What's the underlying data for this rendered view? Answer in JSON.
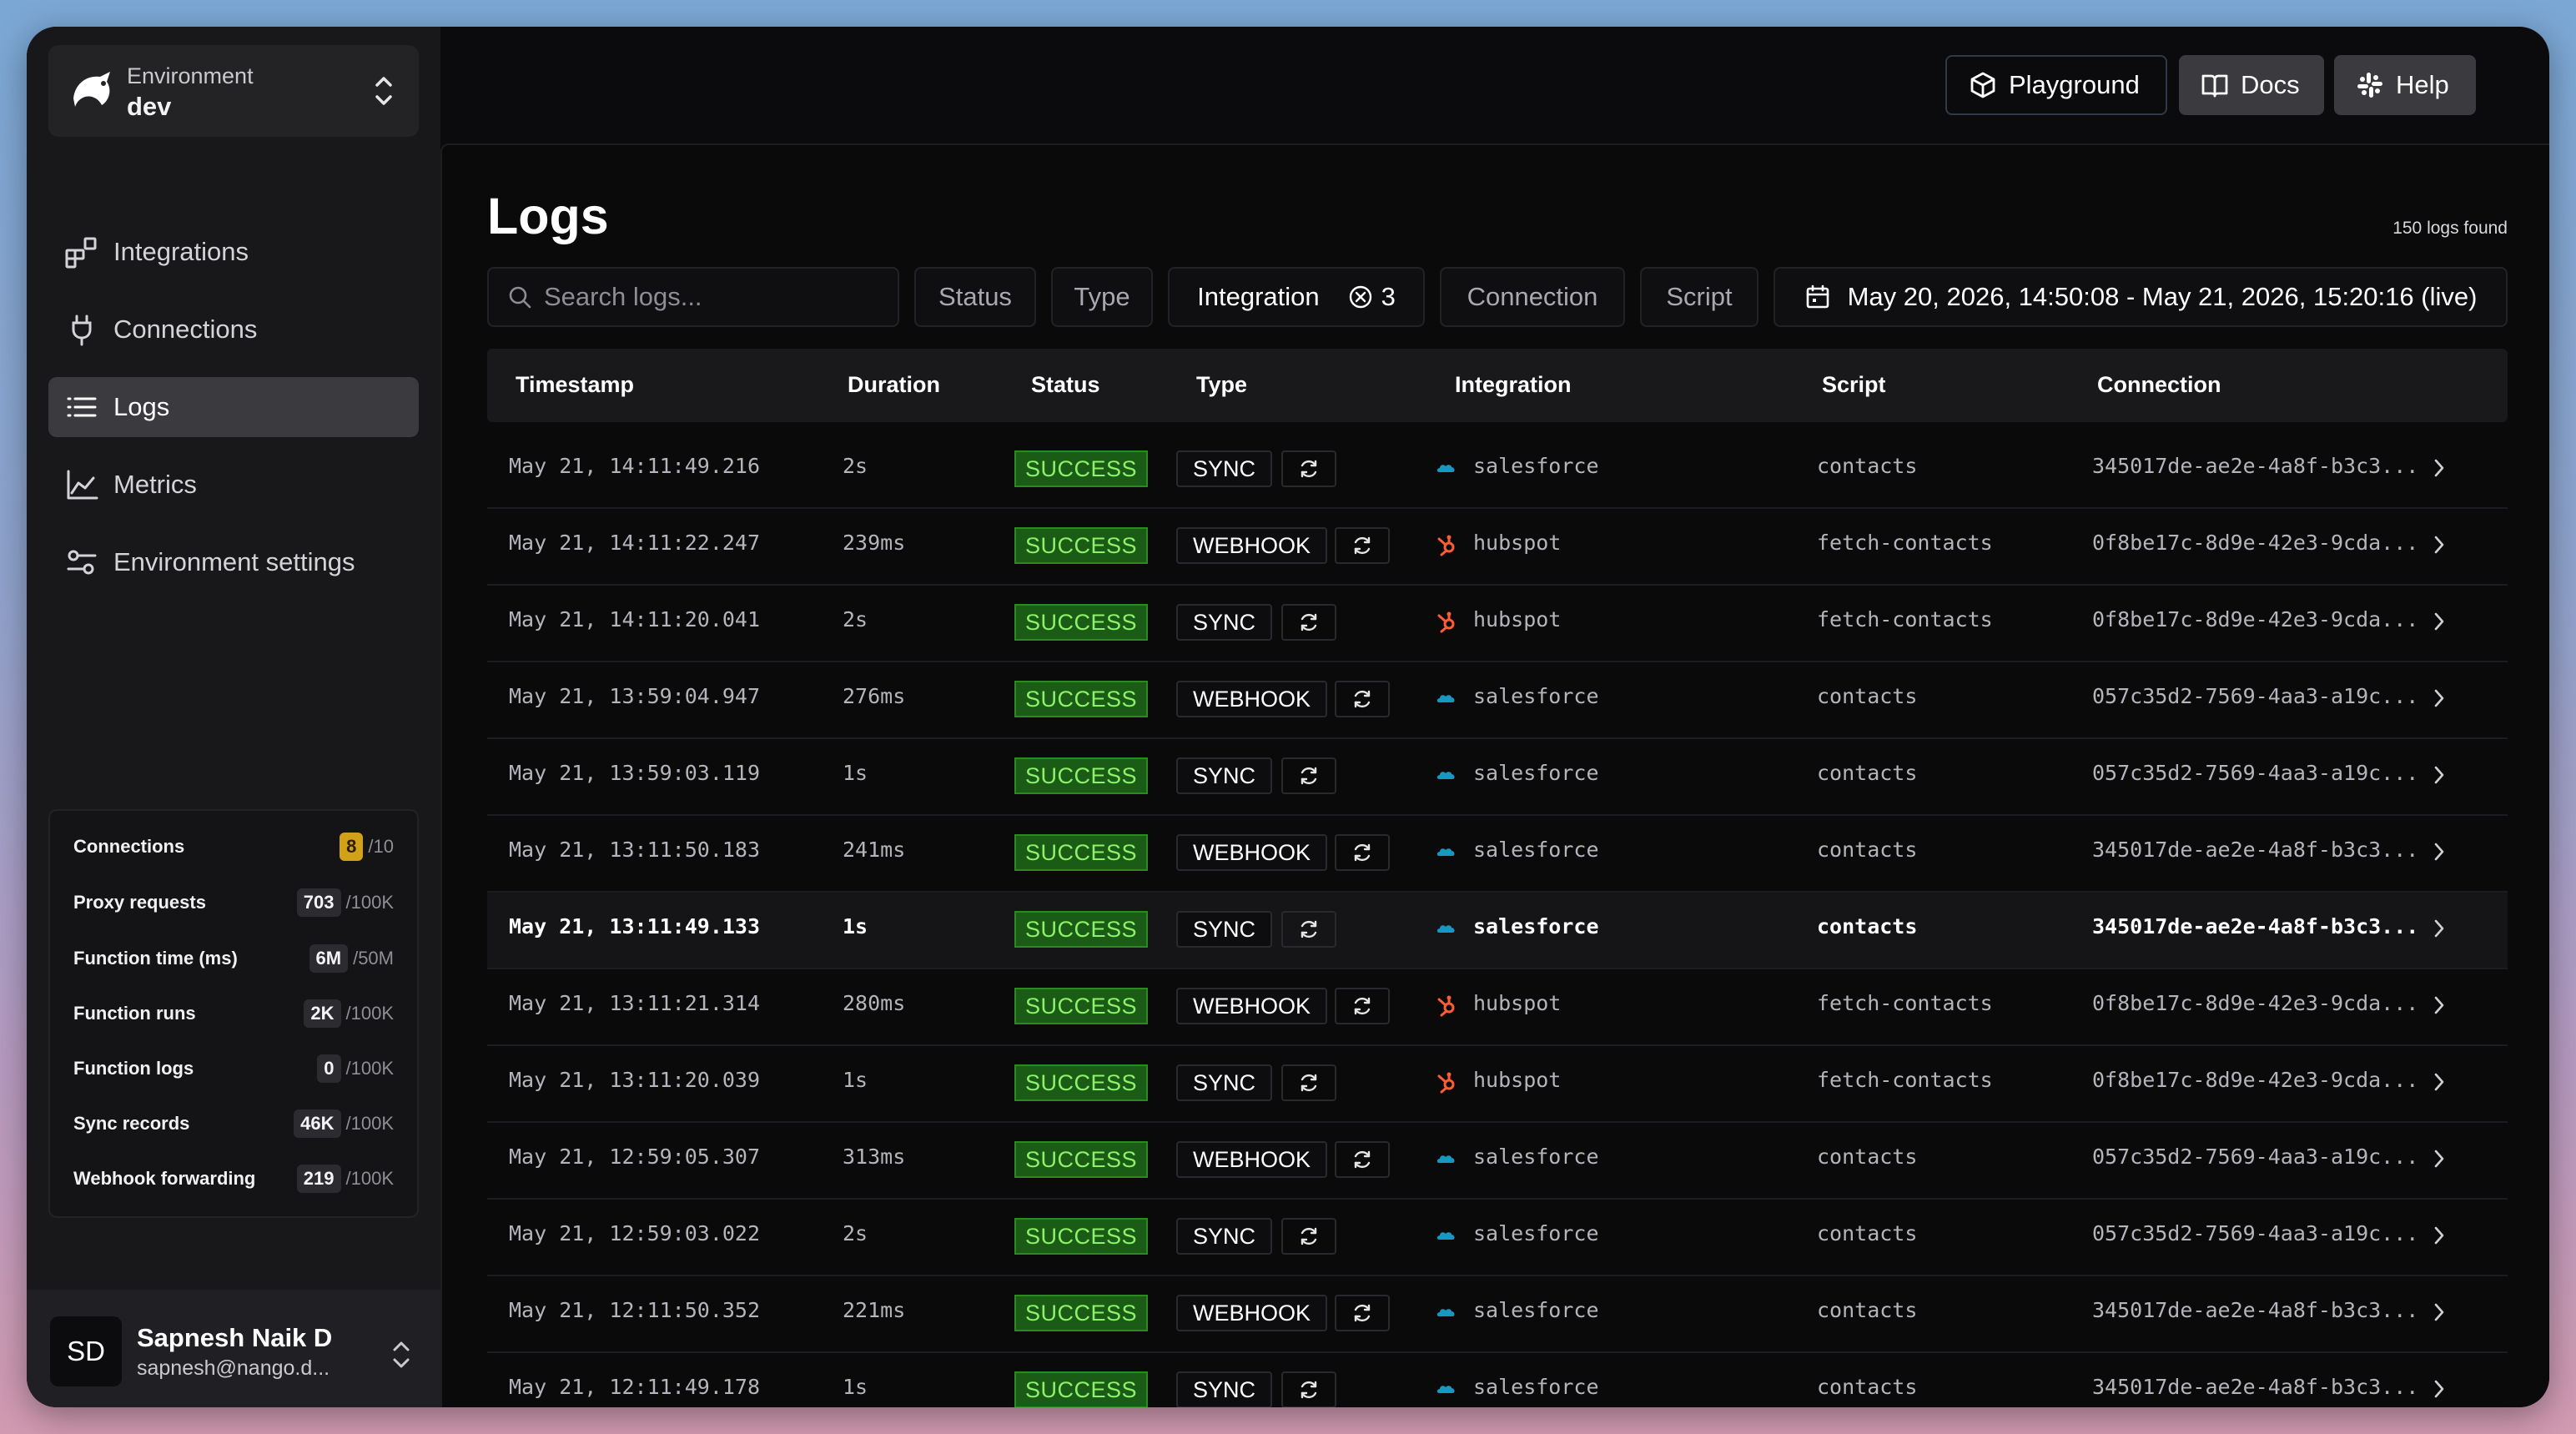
{
  "colors": {
    "success_bg": "#1a5c15",
    "success_text": "#8ff06b",
    "warn_badge": "#d1a118",
    "salesforce": "#1798c1",
    "hubspot": "#ff5c35"
  },
  "environment": {
    "label": "Environment",
    "value": "dev"
  },
  "nav": [
    {
      "label": "Integrations",
      "icon": "integrations-icon",
      "active": false
    },
    {
      "label": "Connections",
      "icon": "plug-icon",
      "active": false
    },
    {
      "label": "Logs",
      "icon": "list-icon",
      "active": true
    },
    {
      "label": "Metrics",
      "icon": "chart-icon",
      "active": false
    },
    {
      "label": "Environment settings",
      "icon": "settings-sliders-icon",
      "active": false
    }
  ],
  "usage": [
    {
      "label": "Connections",
      "value": "8",
      "limit": "/10",
      "warn": true
    },
    {
      "label": "Proxy requests",
      "value": "703",
      "limit": "/100K",
      "warn": false
    },
    {
      "label": "Function time (ms)",
      "value": "6M",
      "limit": "/50M",
      "warn": false
    },
    {
      "label": "Function runs",
      "value": "2K",
      "limit": "/100K",
      "warn": false
    },
    {
      "label": "Function logs",
      "value": "0",
      "limit": "/100K",
      "warn": false
    },
    {
      "label": "Sync records",
      "value": "46K",
      "limit": "/100K",
      "warn": false
    },
    {
      "label": "Webhook forwarding",
      "value": "219",
      "limit": "/100K",
      "warn": false
    }
  ],
  "user": {
    "initials": "SD",
    "name": "Sapnesh Naik D",
    "email": "sapnesh@nango.d..."
  },
  "topbar": {
    "playground": "Playground",
    "docs": "Docs",
    "help": "Help"
  },
  "page": {
    "title": "Logs",
    "count": "150 logs found"
  },
  "filters": {
    "search_placeholder": "Search logs...",
    "status": "Status",
    "type": "Type",
    "integration": "Integration",
    "integration_count": "3",
    "connection": "Connection",
    "script": "Script",
    "date_range": "May 20, 2026, 14:50:08 - May 21, 2026, 15:20:16 (live)"
  },
  "columns": [
    "Timestamp",
    "Duration",
    "Status",
    "Type",
    "Integration",
    "Script",
    "Connection"
  ],
  "rows": [
    {
      "timestamp": "May 21, 14:11:49.216",
      "duration": "2s",
      "status": "SUCCESS",
      "type": "SYNC",
      "integration": "salesforce",
      "script": "contacts",
      "connection": "345017de-ae2e-4a8f-b3c3...",
      "highlight": false
    },
    {
      "timestamp": "May 21, 14:11:22.247",
      "duration": "239ms",
      "status": "SUCCESS",
      "type": "WEBHOOK",
      "integration": "hubspot",
      "script": "fetch-contacts",
      "connection": "0f8be17c-8d9e-42e3-9cda...",
      "highlight": false
    },
    {
      "timestamp": "May 21, 14:11:20.041",
      "duration": "2s",
      "status": "SUCCESS",
      "type": "SYNC",
      "integration": "hubspot",
      "script": "fetch-contacts",
      "connection": "0f8be17c-8d9e-42e3-9cda...",
      "highlight": false
    },
    {
      "timestamp": "May 21, 13:59:04.947",
      "duration": "276ms",
      "status": "SUCCESS",
      "type": "WEBHOOK",
      "integration": "salesforce",
      "script": "contacts",
      "connection": "057c35d2-7569-4aa3-a19c...",
      "highlight": false
    },
    {
      "timestamp": "May 21, 13:59:03.119",
      "duration": "1s",
      "status": "SUCCESS",
      "type": "SYNC",
      "integration": "salesforce",
      "script": "contacts",
      "connection": "057c35d2-7569-4aa3-a19c...",
      "highlight": false
    },
    {
      "timestamp": "May 21, 13:11:50.183",
      "duration": "241ms",
      "status": "SUCCESS",
      "type": "WEBHOOK",
      "integration": "salesforce",
      "script": "contacts",
      "connection": "345017de-ae2e-4a8f-b3c3...",
      "highlight": false
    },
    {
      "timestamp": "May 21, 13:11:49.133",
      "duration": "1s",
      "status": "SUCCESS",
      "type": "SYNC",
      "integration": "salesforce",
      "script": "contacts",
      "connection": "345017de-ae2e-4a8f-b3c3...",
      "highlight": true
    },
    {
      "timestamp": "May 21, 13:11:21.314",
      "duration": "280ms",
      "status": "SUCCESS",
      "type": "WEBHOOK",
      "integration": "hubspot",
      "script": "fetch-contacts",
      "connection": "0f8be17c-8d9e-42e3-9cda...",
      "highlight": false
    },
    {
      "timestamp": "May 21, 13:11:20.039",
      "duration": "1s",
      "status": "SUCCESS",
      "type": "SYNC",
      "integration": "hubspot",
      "script": "fetch-contacts",
      "connection": "0f8be17c-8d9e-42e3-9cda...",
      "highlight": false
    },
    {
      "timestamp": "May 21, 12:59:05.307",
      "duration": "313ms",
      "status": "SUCCESS",
      "type": "WEBHOOK",
      "integration": "salesforce",
      "script": "contacts",
      "connection": "057c35d2-7569-4aa3-a19c...",
      "highlight": false
    },
    {
      "timestamp": "May 21, 12:59:03.022",
      "duration": "2s",
      "status": "SUCCESS",
      "type": "SYNC",
      "integration": "salesforce",
      "script": "contacts",
      "connection": "057c35d2-7569-4aa3-a19c...",
      "highlight": false
    },
    {
      "timestamp": "May 21, 12:11:50.352",
      "duration": "221ms",
      "status": "SUCCESS",
      "type": "WEBHOOK",
      "integration": "salesforce",
      "script": "contacts",
      "connection": "345017de-ae2e-4a8f-b3c3...",
      "highlight": false
    },
    {
      "timestamp": "May 21, 12:11:49.178",
      "duration": "1s",
      "status": "SUCCESS",
      "type": "SYNC",
      "integration": "salesforce",
      "script": "contacts",
      "connection": "345017de-ae2e-4a8f-b3c3...",
      "highlight": false
    }
  ]
}
